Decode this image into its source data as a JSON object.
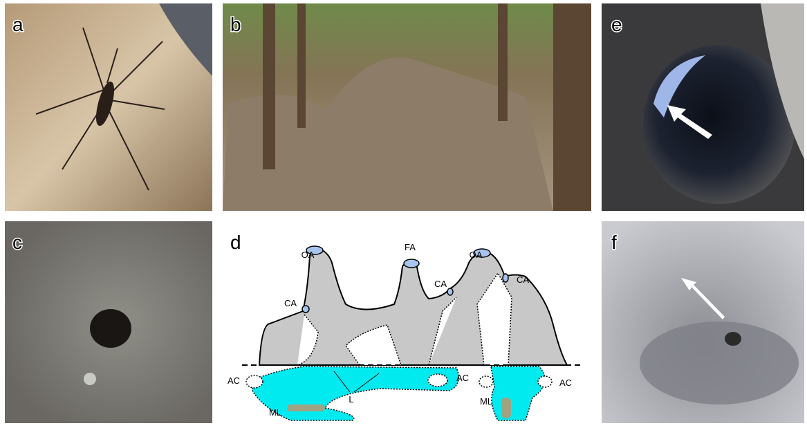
{
  "panels": {
    "a": "a",
    "b": "b",
    "c": "c",
    "d": "d",
    "e": "e",
    "f": "f"
  },
  "diagram": {
    "labels": [
      "OA",
      "FA",
      "OA",
      "CA",
      "CA",
      "CA",
      "AC",
      "AC",
      "AC",
      "L",
      "ML",
      "ML"
    ]
  }
}
